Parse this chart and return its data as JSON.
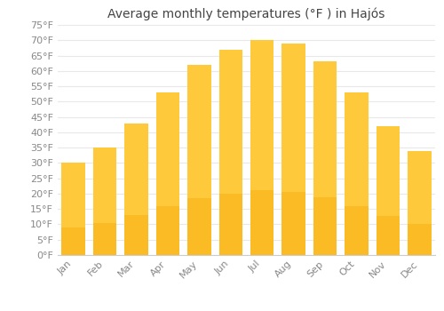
{
  "title": "Average monthly temperatures (°F ) in Hajós",
  "months": [
    "Jan",
    "Feb",
    "Mar",
    "Apr",
    "May",
    "Jun",
    "Jul",
    "Aug",
    "Sep",
    "Oct",
    "Nov",
    "Dec"
  ],
  "values": [
    30,
    35,
    43,
    53,
    62,
    67,
    70,
    69,
    63,
    53,
    42,
    34
  ],
  "bar_color_top": "#FFC93C",
  "bar_color_bottom": "#F5A800",
  "background_color": "#ffffff",
  "grid_color": "#e8e8e8",
  "ylim": [
    0,
    75
  ],
  "yticks": [
    0,
    5,
    10,
    15,
    20,
    25,
    30,
    35,
    40,
    45,
    50,
    55,
    60,
    65,
    70,
    75
  ],
  "title_fontsize": 10,
  "tick_fontsize": 8,
  "tick_color": "#888888",
  "title_color": "#444444"
}
